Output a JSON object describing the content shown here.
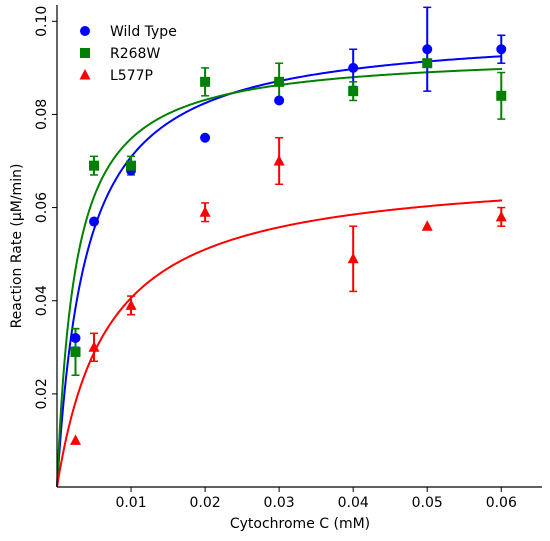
{
  "chart_data": {
    "type": "scatter",
    "xlabel": "Cytochrome C (mM)",
    "ylabel": "Reaction Rate (µM/min)",
    "xlim": [
      0,
      0.0655
    ],
    "ylim": [
      0,
      0.1035
    ],
    "xticks": [
      0.01,
      0.02,
      0.03,
      0.04,
      0.05,
      0.06
    ],
    "xtick_labels": [
      "0.01",
      "0.02",
      "0.03",
      "0.04",
      "0.05",
      "0.06"
    ],
    "yticks": [
      0.02,
      0.04,
      0.06,
      0.08,
      0.1
    ],
    "ytick_labels": [
      "0.02",
      "0.04",
      "0.06",
      "0.08",
      "0.10"
    ],
    "grid": false,
    "legend_position": "top-left",
    "series": [
      {
        "name": "Wild Type",
        "marker": "circle",
        "color": "#0000ff",
        "x": [
          0.0025,
          0.005,
          0.01,
          0.02,
          0.03,
          0.04,
          0.05,
          0.06
        ],
        "y": [
          0.032,
          0.057,
          0.068,
          0.075,
          0.083,
          0.09,
          0.094,
          0.094
        ],
        "err": [
          0.002,
          0.0,
          0.0,
          0.0,
          0.0,
          0.004,
          0.009,
          0.003
        ],
        "fit": {
          "vmax": 0.0985,
          "km": 0.0039
        }
      },
      {
        "name": "R268W",
        "marker": "square",
        "color": "#008000",
        "x": [
          0.0025,
          0.005,
          0.01,
          0.02,
          0.03,
          0.04,
          0.05,
          0.06
        ],
        "y": [
          0.029,
          0.069,
          0.069,
          0.087,
          0.087,
          0.085,
          0.091,
          0.084
        ],
        "err": [
          0.005,
          0.002,
          0.002,
          0.003,
          0.004,
          0.002,
          0.0,
          0.005
        ],
        "fit": {
          "vmax": 0.0935,
          "km": 0.0025
        }
      },
      {
        "name": "L577P",
        "marker": "triangle",
        "color": "#ff0000",
        "x": [
          0.0025,
          0.005,
          0.01,
          0.02,
          0.03,
          0.04,
          0.05,
          0.06
        ],
        "y": [
          0.01,
          0.03,
          0.039,
          0.059,
          0.07,
          0.049,
          0.056,
          0.058
        ],
        "err": [
          0.0,
          0.003,
          0.002,
          0.002,
          0.005,
          0.007,
          0.0,
          0.002
        ],
        "fit": {
          "vmax": 0.0686,
          "km": 0.0069
        }
      }
    ]
  }
}
